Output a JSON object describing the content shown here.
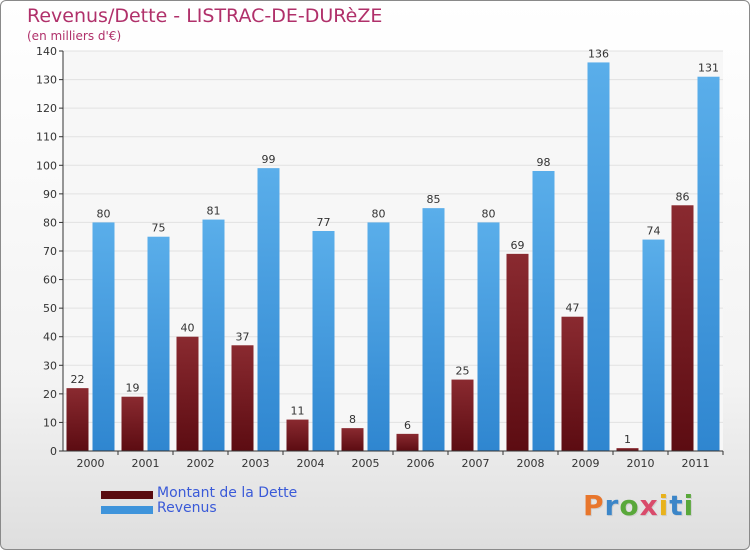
{
  "header": {
    "title": "Revenus/Dette - LISTRAC-DE-DURèZE",
    "subtitle": "(en milliers d'€)"
  },
  "chart_data": {
    "type": "bar",
    "categories": [
      "2000",
      "2001",
      "2002",
      "2003",
      "2004",
      "2005",
      "2006",
      "2007",
      "2008",
      "2009",
      "2010",
      "2011"
    ],
    "series": [
      {
        "name": "Montant de la Dette",
        "values": [
          22,
          19,
          40,
          37,
          11,
          8,
          6,
          25,
          69,
          47,
          1,
          86
        ],
        "color": "#7a1f24"
      },
      {
        "name": "Revenus",
        "values": [
          80,
          75,
          81,
          99,
          77,
          80,
          85,
          80,
          98,
          136,
          74,
          131
        ],
        "color": "#4d9fe0"
      }
    ],
    "ylim": [
      0,
      140
    ],
    "yticks": [
      0,
      10,
      20,
      30,
      40,
      50,
      60,
      70,
      80,
      90,
      100,
      110,
      120,
      130,
      140
    ],
    "grid": true,
    "legend_position": "bottom-left"
  },
  "legend": {
    "items": [
      {
        "label": "Montant de la Dette",
        "color": "#5a0c10"
      },
      {
        "label": "Revenus",
        "color": "#3f94db"
      }
    ]
  },
  "logo": {
    "letters": [
      "P",
      "r",
      "o",
      "x",
      "i",
      "t",
      "i"
    ],
    "colors": [
      "#e8762c",
      "#3c86c8",
      "#59a83a",
      "#d94b6b",
      "#e8b21c",
      "#3c86c8",
      "#59a83a"
    ]
  }
}
